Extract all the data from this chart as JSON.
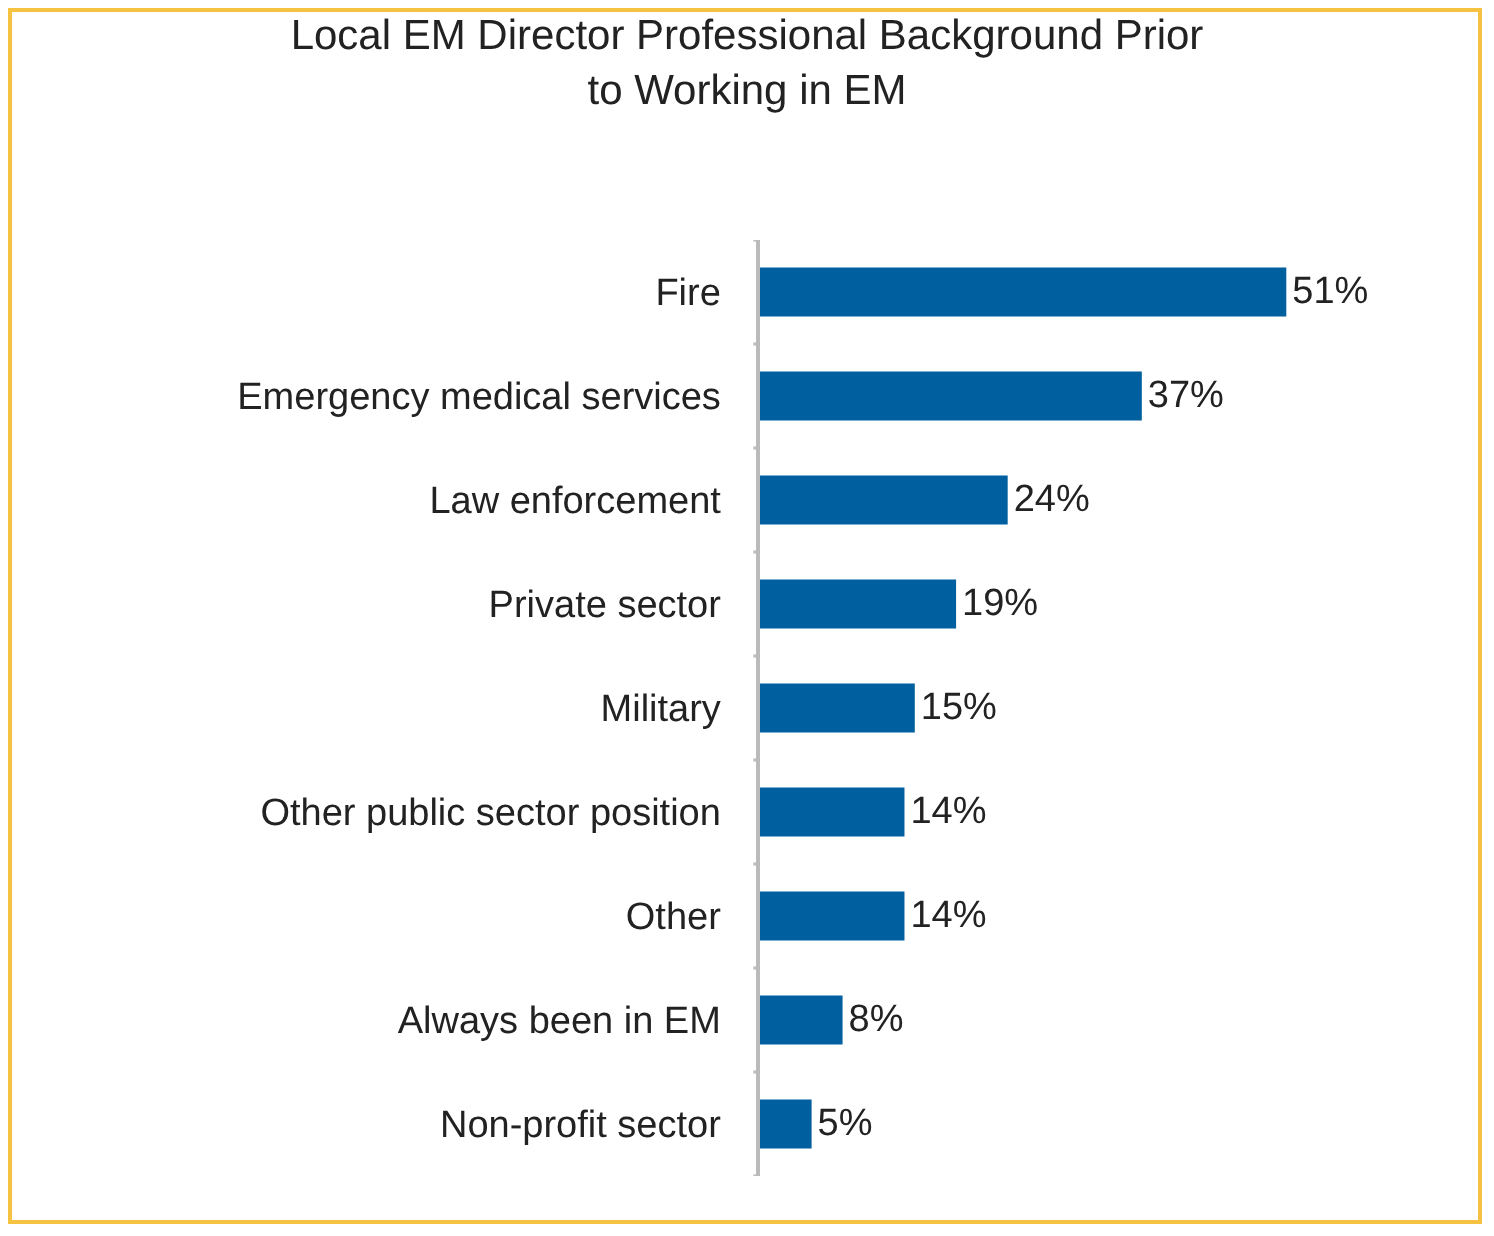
{
  "chart_data": {
    "type": "bar",
    "orientation": "horizontal",
    "title": "Local EM Director Professional Background Prior to Working in EM",
    "categories": [
      "Fire",
      "Emergency medical services",
      "Law enforcement",
      "Private sector",
      "Military",
      "Other public sector position",
      "Other",
      "Always been in EM",
      "Non-profit sector"
    ],
    "values": [
      51,
      37,
      24,
      19,
      15,
      14,
      14,
      8,
      5
    ],
    "value_labels": [
      "51%",
      "37%",
      "24%",
      "19%",
      "15%",
      "14%",
      "14%",
      "8%",
      "5%"
    ],
    "color": "#005f9e",
    "tick_labels": "y"
  }
}
